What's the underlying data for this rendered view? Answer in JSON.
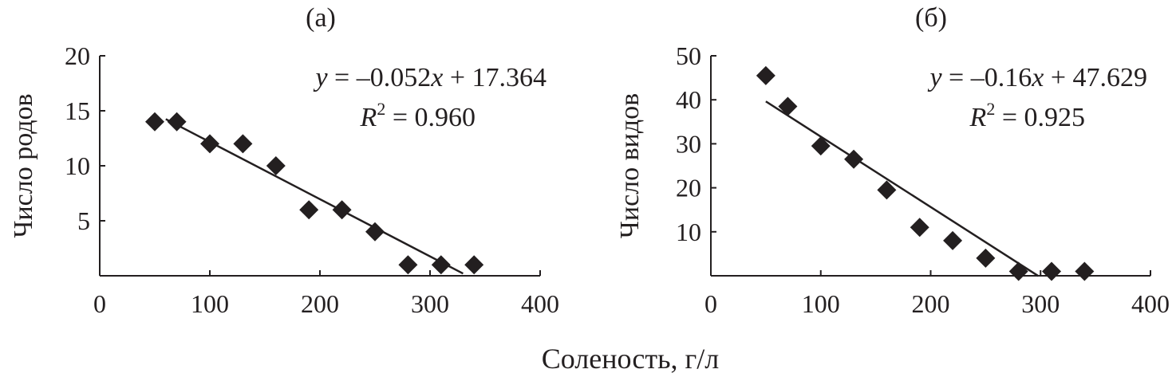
{
  "figure": {
    "shared_xlabel": "Соленость, г/л"
  },
  "chart_data": [
    {
      "type": "scatter",
      "panel_label": "(а)",
      "title": "",
      "xlabel": "",
      "ylabel": "Число родов",
      "xlim": [
        0,
        400
      ],
      "ylim": [
        0,
        20
      ],
      "x_ticks": [
        "0",
        "100",
        "200",
        "300",
        "400"
      ],
      "y_ticks": [
        "5",
        "10",
        "15",
        "20"
      ],
      "x_tick_values": [
        0,
        100,
        200,
        300,
        400
      ],
      "y_tick_values": [
        5,
        10,
        15,
        20
      ],
      "series": [
        {
          "marker": "diamond",
          "color": "#231f20",
          "x": [
            50,
            70,
            100,
            130,
            160,
            190,
            220,
            250,
            280,
            310,
            340
          ],
          "y": [
            14,
            14,
            12,
            12,
            10,
            6,
            6,
            4,
            1,
            1,
            1
          ]
        }
      ],
      "trendline": {
        "slope": -0.052,
        "intercept": 17.364,
        "x_range": [
          60,
          330
        ],
        "equation_parts": [
          "y",
          " = –0.052",
          "x",
          " + 17.364"
        ],
        "r2_parts": [
          "R",
          "2",
          " = 0.960"
        ]
      },
      "grid": false
    },
    {
      "type": "scatter",
      "panel_label": "(б)",
      "title": "",
      "xlabel": "",
      "ylabel": "Число видов",
      "xlim": [
        0,
        400
      ],
      "ylim": [
        0,
        50
      ],
      "x_ticks": [
        "0",
        "100",
        "200",
        "300",
        "400"
      ],
      "y_ticks": [
        "10",
        "20",
        "30",
        "40",
        "50"
      ],
      "x_tick_values": [
        0,
        100,
        200,
        300,
        400
      ],
      "y_tick_values": [
        10,
        20,
        30,
        40,
        50
      ],
      "series": [
        {
          "marker": "diamond",
          "color": "#231f20",
          "x": [
            50,
            70,
            100,
            130,
            160,
            190,
            220,
            250,
            280,
            310,
            340
          ],
          "y": [
            45.5,
            38.5,
            29.5,
            26.5,
            19.5,
            11,
            8,
            4,
            1,
            1,
            1
          ]
        }
      ],
      "trendline": {
        "slope": -0.16,
        "intercept": 47.629,
        "x_range": [
          50,
          298
        ],
        "equation_parts": [
          "y",
          " = –0.16",
          "x",
          " + 47.629"
        ],
        "r2_parts": [
          "R",
          "2",
          " = 0.925"
        ]
      },
      "grid": false
    }
  ]
}
